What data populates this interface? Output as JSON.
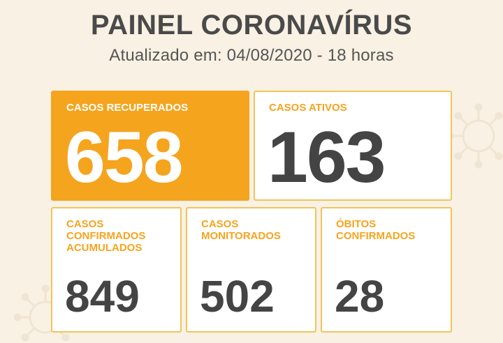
{
  "header": {
    "title": "PAINEL CORONAVÍRUS",
    "subtitle": "Atualizado em: 04/08/2020 - 18 horas"
  },
  "cards": {
    "recovered": {
      "label": "CASOS RECUPERADOS",
      "value": "658"
    },
    "active": {
      "label": "CASOS ATIVOS",
      "value": "163"
    },
    "confirmed": {
      "label_line1": "CASOS",
      "label_line2": "CONFIRMADOS",
      "label_line3": "ACUMULADOS",
      "value": "849"
    },
    "monitored": {
      "label_line1": "CASOS",
      "label_line2": "MONITORADOS",
      "value": "502"
    },
    "deaths": {
      "label_line1": "ÓBITOS",
      "label_line2": "CONFIRMADOS",
      "value": "28"
    }
  },
  "colors": {
    "accent": "#f5a41e",
    "card_border": "#f2c45a",
    "background": "#f8f1e4",
    "text_dark": "#444444"
  },
  "decorations": [
    "virus-icon",
    "virus-icon"
  ]
}
